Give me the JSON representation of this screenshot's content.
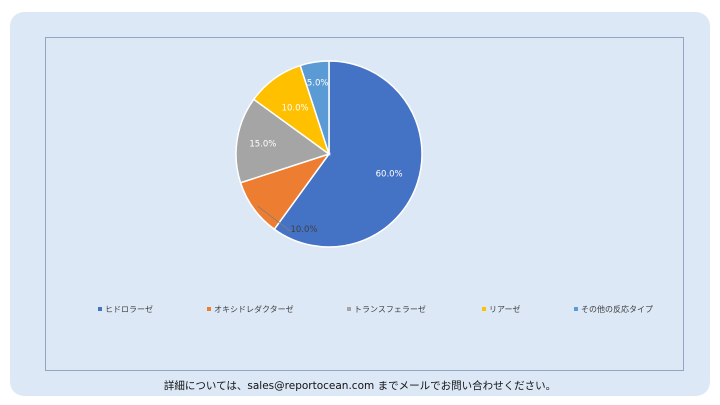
{
  "chart_data": {
    "type": "pie",
    "title": "",
    "legend_position": "bottom",
    "slices": [
      {
        "name": "ヒドロラーゼ",
        "value": 60.0,
        "label": "60.0%",
        "color": "#4472c4"
      },
      {
        "name": "オキシドレダクターゼ",
        "value": 10.0,
        "label": "10.0%",
        "color": "#ed7d31"
      },
      {
        "name": "トランスフェラーゼ",
        "value": 15.0,
        "label": "15.0%",
        "color": "#a5a5a5"
      },
      {
        "name": "リアーゼ",
        "value": 10.0,
        "label": "10.0%",
        "color": "#ffc000"
      },
      {
        "name": "その他の反応タイプ",
        "value": 5.0,
        "label": "5.0%",
        "color": "#5b9bd5"
      }
    ]
  },
  "footer": {
    "text": "詳細については、sales@reportocean.com までメールでお問い合わせください。"
  }
}
